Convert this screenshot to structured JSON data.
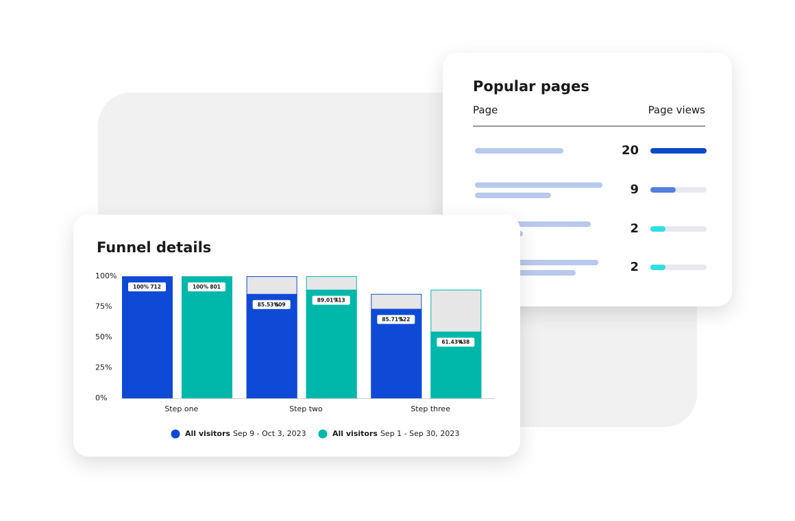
{
  "chart_data": {
    "type": "bar",
    "title": "Funnel details",
    "categories": [
      "Step one",
      "Step two",
      "Step three"
    ],
    "series": [
      {
        "name": "All visitors",
        "period": "Sep 9 - Oct 3, 2023",
        "color": "#0f4ad6",
        "values": [
          712,
          609,
          522
        ],
        "rate_labels": [
          "100%",
          "85.53%",
          "85.71%"
        ]
      },
      {
        "name": "All visitors",
        "period": "Sep 1 - Sep 30, 2023",
        "color": "#00b8a9",
        "values": [
          801,
          713,
          438
        ],
        "rate_labels": [
          "100%",
          "89.01%",
          "61.43%"
        ]
      }
    ],
    "ylim": [
      0,
      100
    ],
    "yticks": [
      {
        "value": 0,
        "label": "0%"
      },
      {
        "value": 25,
        "label": "25%"
      },
      {
        "value": 50,
        "label": "50%"
      },
      {
        "value": 75,
        "label": "75%"
      },
      {
        "value": 100,
        "label": "100%"
      }
    ],
    "dropoff_color": "#e6e6e6"
  },
  "popular_pages": {
    "title": "Popular pages",
    "columns": [
      "Page",
      "Page views"
    ],
    "rows": [
      {
        "views": 20,
        "color": "#0f47c9"
      },
      {
        "views": 9,
        "color": "#5580dd"
      },
      {
        "views": 2,
        "color": "#2fe0e0"
      },
      {
        "views": 2,
        "color": "#2fe0e0"
      }
    ]
  }
}
